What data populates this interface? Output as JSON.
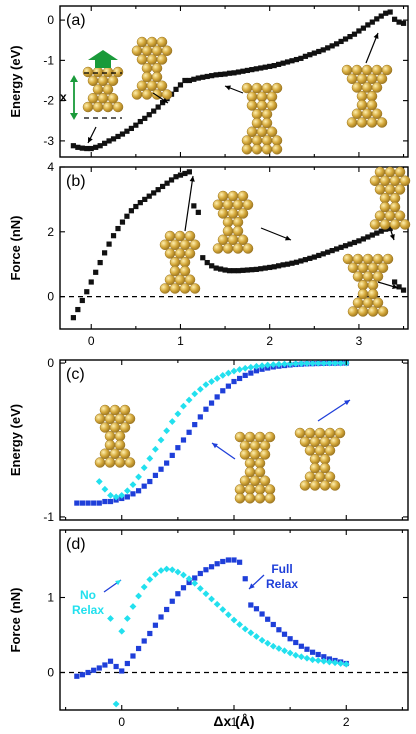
{
  "colors": {
    "black_series": "#111111",
    "full_relax": "#1f3fd9",
    "no_relax": "#22e0ee",
    "gold": "#d4a83a",
    "gold_dark": "#9a7420",
    "green": "#1a9a3a"
  },
  "xlabel": "Δx (Å)",
  "chart_data": [
    {
      "panel": "(a)",
      "type": "scatter",
      "ylabel": "Energy (eV)",
      "xlim": [
        -0.35,
        3.55
      ],
      "ylim": [
        -3.4,
        0.35
      ],
      "xticks": [
        0,
        1,
        2,
        3
      ],
      "xtick_labels": [
        "",
        "",
        "",
        ""
      ],
      "yticks": [
        0,
        -1,
        -2,
        -3
      ],
      "ytick_labels": [
        "0",
        "-1",
        "-2",
        "-3"
      ],
      "inset_label": "x",
      "series": [
        {
          "color_key": "black_series",
          "marker": "square",
          "x": [
            -0.2,
            -0.15,
            -0.1,
            -0.05,
            0.0,
            0.05,
            0.1,
            0.15,
            0.2,
            0.25,
            0.3,
            0.35,
            0.4,
            0.45,
            0.5,
            0.55,
            0.6,
            0.65,
            0.7,
            0.75,
            0.8,
            0.85,
            0.9,
            0.95,
            1.0,
            1.05,
            1.1,
            1.15,
            1.2,
            1.25,
            1.3,
            1.35,
            1.4,
            1.45,
            1.5,
            1.55,
            1.6,
            1.65,
            1.7,
            1.75,
            1.8,
            1.85,
            1.9,
            1.95,
            2.0,
            2.05,
            2.1,
            2.15,
            2.2,
            2.25,
            2.3,
            2.35,
            2.4,
            2.45,
            2.5,
            2.55,
            2.6,
            2.65,
            2.7,
            2.75,
            2.8,
            2.85,
            2.9,
            2.95,
            3.0,
            3.05,
            3.1,
            3.15,
            3.2,
            3.25,
            3.3,
            3.35,
            3.4,
            3.45,
            3.5
          ],
          "y": [
            -3.12,
            -3.16,
            -3.18,
            -3.19,
            -3.19,
            -3.16,
            -3.12,
            -3.06,
            -3.0,
            -2.95,
            -2.89,
            -2.83,
            -2.76,
            -2.69,
            -2.61,
            -2.52,
            -2.44,
            -2.35,
            -2.26,
            -2.16,
            -2.05,
            -1.95,
            -1.84,
            -1.72,
            -1.61,
            -1.5,
            -1.5,
            -1.47,
            -1.44,
            -1.42,
            -1.4,
            -1.38,
            -1.36,
            -1.35,
            -1.34,
            -1.32,
            -1.31,
            -1.29,
            -1.27,
            -1.25,
            -1.23,
            -1.21,
            -1.19,
            -1.17,
            -1.15,
            -1.13,
            -1.1,
            -1.07,
            -1.04,
            -1.01,
            -0.98,
            -0.95,
            -0.9,
            -0.86,
            -0.82,
            -0.78,
            -0.74,
            -0.69,
            -0.64,
            -0.59,
            -0.53,
            -0.47,
            -0.41,
            -0.35,
            -0.27,
            -0.2,
            -0.12,
            -0.05,
            0.03,
            0.1,
            0.17,
            0.2,
            0.02,
            -0.05,
            -0.08
          ]
        }
      ]
    },
    {
      "panel": "(b)",
      "type": "scatter",
      "ylabel": "Force (nN)",
      "xlim": [
        -0.35,
        3.55
      ],
      "ylim": [
        -1.0,
        4.0
      ],
      "xticks": [
        0,
        1,
        2,
        3
      ],
      "xtick_labels": [
        "0",
        "1",
        "2",
        "3"
      ],
      "yticks": [
        0,
        2,
        4
      ],
      "ytick_labels": [
        "0",
        "2",
        "4"
      ],
      "series": [
        {
          "color_key": "black_series",
          "marker": "square",
          "x": [
            -0.2,
            -0.15,
            -0.1,
            -0.05,
            0.0,
            0.05,
            0.1,
            0.15,
            0.2,
            0.25,
            0.3,
            0.35,
            0.4,
            0.45,
            0.5,
            0.55,
            0.6,
            0.65,
            0.7,
            0.75,
            0.8,
            0.85,
            0.9,
            0.95,
            1.0,
            1.05,
            1.1,
            1.15,
            1.2,
            1.25,
            1.3,
            1.35,
            1.4,
            1.45,
            1.5,
            1.55,
            1.6,
            1.65,
            1.7,
            1.75,
            1.8,
            1.85,
            1.9,
            1.95,
            2.0,
            2.05,
            2.1,
            2.15,
            2.2,
            2.25,
            2.3,
            2.35,
            2.4,
            2.45,
            2.5,
            2.55,
            2.6,
            2.65,
            2.7,
            2.75,
            2.8,
            2.85,
            2.9,
            2.95,
            3.0,
            3.05,
            3.1,
            3.15,
            3.2,
            3.25,
            3.3,
            3.35,
            3.4,
            3.45,
            3.5
          ],
          "y": [
            -0.65,
            -0.4,
            -0.12,
            0.15,
            0.45,
            0.75,
            1.05,
            1.35,
            1.62,
            1.88,
            2.1,
            2.3,
            2.48,
            2.65,
            2.78,
            2.9,
            3.0,
            3.1,
            3.2,
            3.3,
            3.4,
            3.5,
            3.6,
            3.7,
            3.75,
            3.8,
            3.85,
            2.8,
            2.6,
            1.2,
            1.05,
            0.95,
            0.88,
            0.85,
            0.82,
            0.8,
            0.8,
            0.8,
            0.81,
            0.82,
            0.83,
            0.84,
            0.86,
            0.88,
            0.9,
            0.92,
            0.95,
            0.98,
            1.0,
            1.03,
            1.06,
            1.1,
            1.14,
            1.18,
            1.22,
            1.27,
            1.32,
            1.37,
            1.42,
            1.47,
            1.52,
            1.57,
            1.62,
            1.67,
            1.72,
            1.78,
            1.84,
            1.9,
            1.96,
            2.02,
            2.08,
            2.1,
            0.45,
            0.3,
            0.2
          ]
        }
      ]
    },
    {
      "panel": "(c)",
      "type": "scatter",
      "ylabel": "Energy (eV)",
      "xlim": [
        -0.55,
        2.55
      ],
      "ylim": [
        -1.02,
        0.02
      ],
      "xticks": [
        0,
        1,
        2
      ],
      "xtick_labels": [
        "",
        "",
        ""
      ],
      "yticks": [
        0,
        -1
      ],
      "ytick_labels": [
        "0",
        "-1"
      ],
      "series": [
        {
          "color_key": "full_relax",
          "marker": "square",
          "x": [
            -0.4,
            -0.35,
            -0.3,
            -0.25,
            -0.2,
            -0.15,
            -0.1,
            -0.05,
            0.0,
            0.05,
            0.1,
            0.15,
            0.2,
            0.25,
            0.3,
            0.35,
            0.4,
            0.45,
            0.5,
            0.55,
            0.6,
            0.65,
            0.7,
            0.75,
            0.8,
            0.85,
            0.9,
            0.95,
            1.0,
            1.05,
            1.1,
            1.15,
            1.2,
            1.25,
            1.3,
            1.35,
            1.4,
            1.45,
            1.5,
            1.55,
            1.6,
            1.65,
            1.7,
            1.75,
            1.8,
            1.85,
            1.9,
            1.95,
            2.0
          ],
          "y": [
            -0.91,
            -0.91,
            -0.91,
            -0.91,
            -0.91,
            -0.9,
            -0.9,
            -0.89,
            -0.88,
            -0.87,
            -0.85,
            -0.83,
            -0.8,
            -0.77,
            -0.73,
            -0.69,
            -0.65,
            -0.6,
            -0.55,
            -0.5,
            -0.45,
            -0.4,
            -0.35,
            -0.3,
            -0.26,
            -0.22,
            -0.18,
            -0.15,
            -0.12,
            -0.1,
            -0.08,
            -0.065,
            -0.05,
            -0.04,
            -0.032,
            -0.025,
            -0.02,
            -0.016,
            -0.012,
            -0.009,
            -0.007,
            -0.005,
            -0.004,
            -0.003,
            -0.002,
            -0.001,
            -0.001,
            0.0,
            0.0
          ]
        },
        {
          "color_key": "no_relax",
          "marker": "diamond",
          "x": [
            -0.2,
            -0.15,
            -0.1,
            -0.05,
            0.0,
            0.05,
            0.1,
            0.15,
            0.2,
            0.25,
            0.3,
            0.35,
            0.4,
            0.45,
            0.5,
            0.55,
            0.6,
            0.65,
            0.7,
            0.75,
            0.8,
            0.85,
            0.9,
            0.95,
            1.0,
            1.05,
            1.1,
            1.15,
            1.2,
            1.25,
            1.3,
            1.35,
            1.4,
            1.45,
            1.5,
            1.55,
            1.6,
            1.65,
            1.7,
            1.75,
            1.8,
            1.85,
            1.9,
            1.95,
            2.0
          ],
          "y": [
            -0.77,
            -0.82,
            -0.86,
            -0.87,
            -0.86,
            -0.83,
            -0.79,
            -0.74,
            -0.68,
            -0.62,
            -0.56,
            -0.5,
            -0.44,
            -0.38,
            -0.33,
            -0.28,
            -0.24,
            -0.2,
            -0.17,
            -0.14,
            -0.12,
            -0.1,
            -0.08,
            -0.065,
            -0.052,
            -0.042,
            -0.034,
            -0.027,
            -0.021,
            -0.017,
            -0.013,
            -0.01,
            -0.008,
            -0.006,
            -0.005,
            -0.004,
            -0.003,
            -0.002,
            -0.002,
            -0.001,
            -0.001,
            0.0,
            0.0,
            0.0,
            0.0
          ]
        }
      ]
    },
    {
      "panel": "(d)",
      "type": "scatter",
      "ylabel": "Force (nN)",
      "xlim": [
        -0.55,
        2.55
      ],
      "ylim": [
        -0.5,
        1.9
      ],
      "xticks": [
        0,
        1,
        2
      ],
      "xtick_labels": [
        "0",
        "1",
        "2"
      ],
      "yticks": [
        0,
        1
      ],
      "ytick_labels": [
        "0",
        "1"
      ],
      "annotations": {
        "no_relax": "No\nRelax",
        "full_relax": "Full\nRelax"
      },
      "series": [
        {
          "color_key": "full_relax",
          "marker": "square",
          "x": [
            -0.4,
            -0.35,
            -0.3,
            -0.25,
            -0.2,
            -0.15,
            -0.1,
            -0.05,
            0.0,
            0.05,
            0.1,
            0.15,
            0.2,
            0.25,
            0.3,
            0.35,
            0.4,
            0.45,
            0.5,
            0.55,
            0.6,
            0.65,
            0.7,
            0.75,
            0.8,
            0.85,
            0.9,
            0.95,
            1.0,
            1.05,
            1.1,
            1.15,
            1.2,
            1.25,
            1.3,
            1.35,
            1.4,
            1.45,
            1.5,
            1.55,
            1.6,
            1.65,
            1.7,
            1.75,
            1.8,
            1.85,
            1.9,
            1.95,
            2.0
          ],
          "y": [
            -0.05,
            -0.03,
            0.0,
            0.03,
            0.06,
            0.1,
            0.15,
            0.08,
            0.02,
            0.12,
            0.22,
            0.32,
            0.42,
            0.52,
            0.63,
            0.74,
            0.84,
            0.95,
            1.05,
            1.13,
            1.2,
            1.26,
            1.32,
            1.37,
            1.41,
            1.45,
            1.48,
            1.5,
            1.5,
            1.47,
            1.25,
            0.9,
            0.85,
            0.78,
            0.71,
            0.64,
            0.57,
            0.51,
            0.45,
            0.4,
            0.35,
            0.31,
            0.27,
            0.24,
            0.21,
            0.18,
            0.16,
            0.14,
            0.12
          ]
        },
        {
          "color_key": "no_relax",
          "marker": "diamond",
          "x": [
            -0.05,
            -0.1,
            0.0,
            0.05,
            0.1,
            0.15,
            0.2,
            0.25,
            0.3,
            0.35,
            0.4,
            0.45,
            0.5,
            0.55,
            0.6,
            0.65,
            0.7,
            0.75,
            0.8,
            0.85,
            0.9,
            0.95,
            1.0,
            1.05,
            1.1,
            1.15,
            1.2,
            1.25,
            1.3,
            1.35,
            1.4,
            1.45,
            1.5,
            1.55,
            1.6,
            1.65,
            1.7,
            1.75,
            1.8,
            1.85,
            1.9,
            1.95,
            2.0
          ],
          "y": [
            -0.42,
            0.72,
            0.55,
            0.72,
            0.88,
            1.02,
            1.14,
            1.24,
            1.31,
            1.36,
            1.38,
            1.37,
            1.34,
            1.3,
            1.25,
            1.19,
            1.12,
            1.05,
            0.98,
            0.91,
            0.84,
            0.77,
            0.7,
            0.64,
            0.58,
            0.53,
            0.48,
            0.43,
            0.39,
            0.35,
            0.32,
            0.29,
            0.26,
            0.23,
            0.21,
            0.19,
            0.17,
            0.16,
            0.15,
            0.14,
            0.13,
            0.12,
            0.11
          ]
        }
      ]
    }
  ]
}
